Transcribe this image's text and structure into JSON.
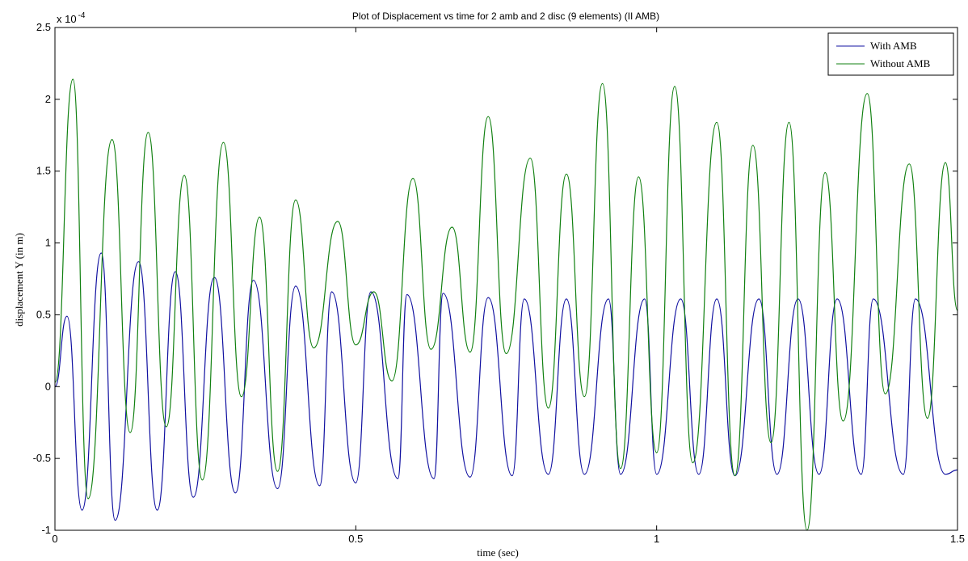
{
  "chart_data": {
    "type": "line",
    "title": "Plot of Displacement vs time for 2 amb and 2 disc (9 elements) (II AMB)",
    "xlabel": "time (sec)",
    "ylabel": "displacement Y (in m)",
    "xlim": [
      0,
      1.5
    ],
    "ylim": [
      -1,
      2.5
    ],
    "y_exponent_prefix": "x 10",
    "y_exponent_power": "-4",
    "xticks": [
      "0",
      "0.5",
      "1",
      "1.5"
    ],
    "yticks": [
      "-1",
      "-0.5",
      "0",
      "0.5",
      "1",
      "1.5",
      "2",
      "2.5"
    ],
    "xtick_values": [
      0,
      0.5,
      1,
      1.5
    ],
    "ytick_values": [
      -1,
      -0.5,
      0,
      0.5,
      1,
      1.5,
      2,
      2.5
    ],
    "grid": false,
    "legend_position": "top-right",
    "series": [
      {
        "name": "With AMB",
        "color": "#1010a0",
        "x": [
          0,
          0.02,
          0.045,
          0.077,
          0.1,
          0.139,
          0.17,
          0.2,
          0.23,
          0.265,
          0.3,
          0.33,
          0.37,
          0.4,
          0.44,
          0.46,
          0.5,
          0.525,
          0.57,
          0.585,
          0.63,
          0.645,
          0.69,
          0.72,
          0.76,
          0.78,
          0.82,
          0.85,
          0.88,
          0.92,
          0.94,
          0.98,
          1.0,
          1.04,
          1.07,
          1.1,
          1.13,
          1.17,
          1.2,
          1.235,
          1.27,
          1.3,
          1.34,
          1.36,
          1.41,
          1.43,
          1.48,
          1.5
        ],
        "values": [
          0,
          0.49,
          -0.86,
          0.93,
          -0.93,
          0.87,
          -0.86,
          0.8,
          -0.77,
          0.76,
          -0.74,
          0.74,
          -0.71,
          0.7,
          -0.69,
          0.66,
          -0.67,
          0.66,
          -0.64,
          0.64,
          -0.64,
          0.65,
          -0.63,
          0.62,
          -0.62,
          0.61,
          -0.61,
          0.61,
          -0.61,
          0.61,
          -0.61,
          0.61,
          -0.61,
          0.61,
          -0.61,
          0.61,
          -0.62,
          0.61,
          -0.61,
          0.61,
          -0.61,
          0.61,
          -0.61,
          0.61,
          -0.61,
          0.61,
          -0.61,
          -0.58
        ]
      },
      {
        "name": "Without AMB",
        "color": "#108010",
        "x": [
          0,
          0.03,
          0.055,
          0.095,
          0.125,
          0.155,
          0.185,
          0.215,
          0.245,
          0.28,
          0.31,
          0.34,
          0.37,
          0.4,
          0.43,
          0.47,
          0.5,
          0.53,
          0.56,
          0.595,
          0.625,
          0.66,
          0.69,
          0.72,
          0.75,
          0.79,
          0.82,
          0.85,
          0.88,
          0.91,
          0.94,
          0.97,
          1.0,
          1.03,
          1.06,
          1.1,
          1.13,
          1.16,
          1.19,
          1.22,
          1.25,
          1.28,
          1.31,
          1.35,
          1.38,
          1.42,
          1.45,
          1.48,
          1.5
        ],
        "values": [
          0.03,
          2.14,
          -0.78,
          1.72,
          -0.32,
          1.77,
          -0.28,
          1.47,
          -0.65,
          1.7,
          -0.07,
          1.18,
          -0.59,
          1.3,
          0.27,
          1.15,
          0.29,
          0.66,
          0.04,
          1.45,
          0.26,
          1.11,
          0.24,
          1.88,
          0.23,
          1.59,
          -0.15,
          1.48,
          -0.07,
          2.11,
          -0.57,
          1.46,
          -0.46,
          2.09,
          -0.53,
          1.84,
          -0.62,
          1.68,
          -0.39,
          1.84,
          -1.0,
          1.49,
          -0.24,
          2.04,
          -0.05,
          1.55,
          -0.22,
          1.56,
          0.53
        ]
      }
    ]
  }
}
